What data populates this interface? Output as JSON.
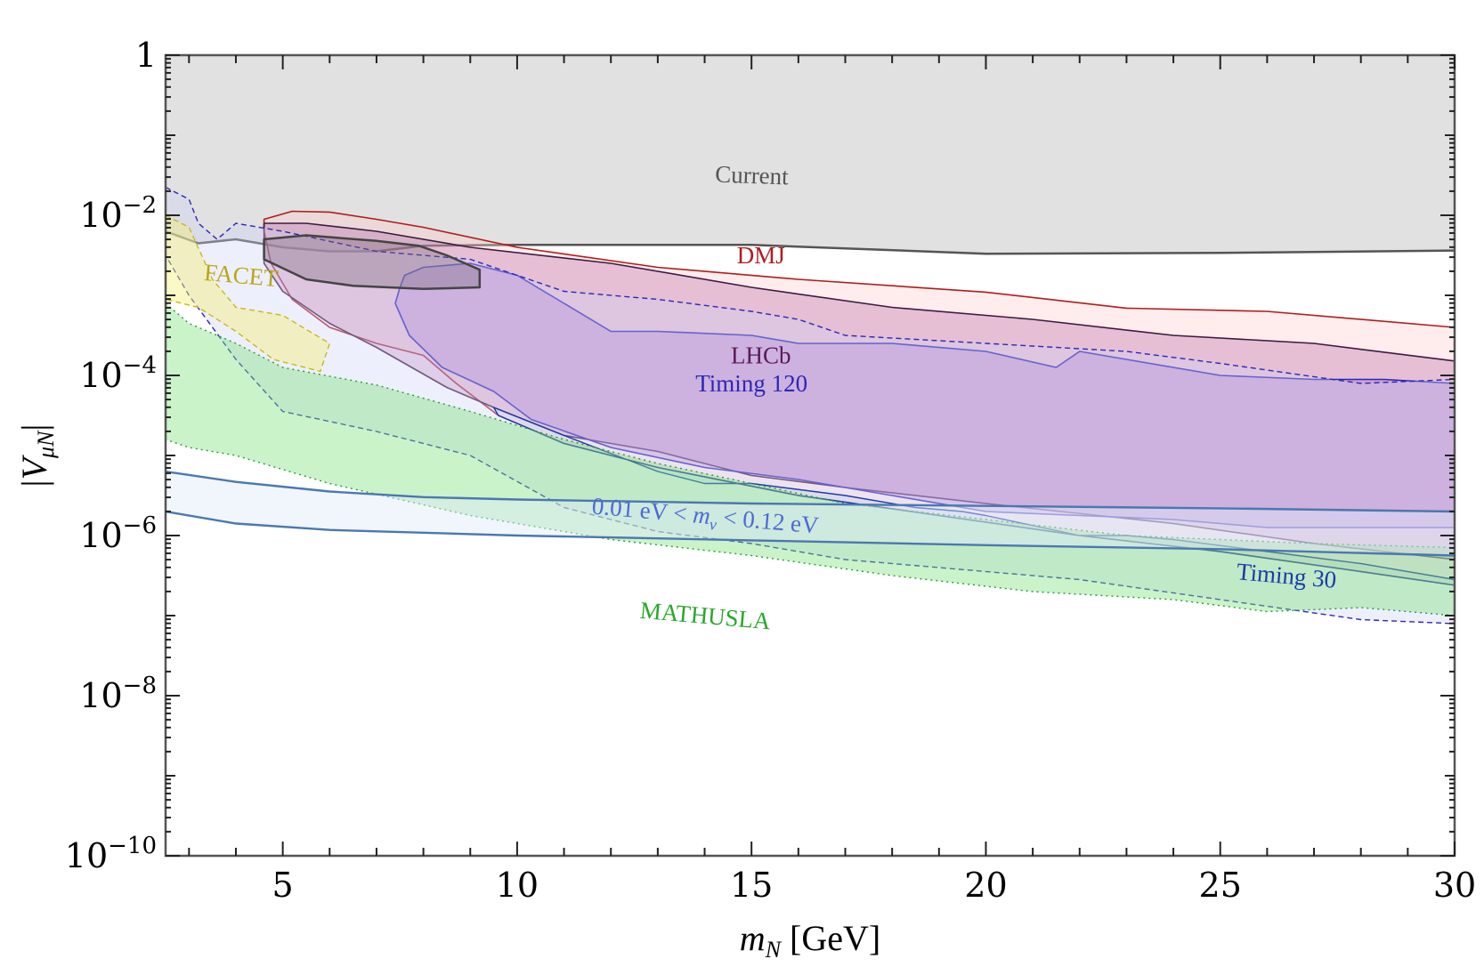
{
  "chart_data": {
    "type": "area",
    "title": "",
    "xlabel": "m_N [GeV]",
    "xlabel_parts": {
      "symbol": "m",
      "sub": "N",
      "unit": "[GeV]"
    },
    "ylabel": "|V_μN|",
    "ylabel_parts": {
      "bar": "|",
      "symbol": "V",
      "sub": "μN"
    },
    "x_scale": "linear",
    "y_scale": "log",
    "xlim": [
      2.5,
      30
    ],
    "ylim_exp": [
      -10,
      0
    ],
    "x_ticks": [
      5,
      10,
      15,
      20,
      25,
      30
    ],
    "x_tick_labels": [
      "5",
      "10",
      "15",
      "20",
      "25",
      "30"
    ],
    "y_ticks_exp": [
      -10,
      -8,
      -6,
      -4,
      -2,
      0
    ],
    "y_tick_labels": [
      {
        "exp": -10,
        "base": "10",
        "sup": "−10"
      },
      {
        "exp": -8,
        "base": "10",
        "sup": "−8"
      },
      {
        "exp": -6,
        "base": "10",
        "sup": "−6"
      },
      {
        "exp": -4,
        "base": "10",
        "sup": "−4"
      },
      {
        "exp": -2,
        "base": "10",
        "sup": "−2"
      },
      {
        "exp": 0,
        "base": "1",
        "sup": ""
      }
    ],
    "series": [
      {
        "name": "Current",
        "kind": "excluded-above",
        "fill": "#c8c8c8",
        "fill_opacity": 0.55,
        "stroke": "#555555",
        "stroke_width": 2.5,
        "dash": "",
        "lower_boundary": [
          [
            2.5,
            -2.2
          ],
          [
            3.2,
            -2.35
          ],
          [
            4,
            -2.3
          ],
          [
            5,
            -2.4
          ],
          [
            6,
            -2.45
          ],
          [
            7,
            -2.45
          ],
          [
            8,
            -2.38
          ],
          [
            10,
            -2.37
          ],
          [
            12,
            -2.37
          ],
          [
            15,
            -2.37
          ],
          [
            20,
            -2.48
          ],
          [
            25,
            -2.47
          ],
          [
            30,
            -2.44
          ]
        ]
      },
      {
        "name": "DMJ",
        "kind": "closed",
        "fill": "#ffc8c8",
        "fill_opacity": 0.35,
        "stroke": "#b01c1c",
        "stroke_width": 1.6,
        "dash": "",
        "points": [
          [
            4.6,
            -2.05
          ],
          [
            5.2,
            -1.95
          ],
          [
            6,
            -1.96
          ],
          [
            7,
            -2.05
          ],
          [
            8,
            -2.15
          ],
          [
            10,
            -2.4
          ],
          [
            13,
            -2.65
          ],
          [
            16,
            -2.8
          ],
          [
            20,
            -2.96
          ],
          [
            23,
            -3.16
          ],
          [
            26,
            -3.2
          ],
          [
            30,
            -3.4
          ],
          [
            30,
            -6.62
          ],
          [
            28,
            -6.45
          ],
          [
            25,
            -6.2
          ],
          [
            22,
            -6.0
          ],
          [
            19,
            -5.75
          ],
          [
            16,
            -5.5
          ],
          [
            13,
            -5.15
          ],
          [
            11,
            -4.85
          ],
          [
            9.6,
            -4.5
          ],
          [
            8.7,
            -4.1
          ],
          [
            8,
            -3.75
          ],
          [
            7,
            -3.6
          ],
          [
            6,
            -3.4
          ],
          [
            5.2,
            -3.05
          ],
          [
            4.75,
            -2.6
          ],
          [
            4.6,
            -2.2
          ]
        ]
      },
      {
        "name": "LHCb",
        "kind": "closed",
        "fill": "#a64d9c",
        "fill_opacity": 0.28,
        "stroke": "#3c1a40",
        "stroke_width": 1.6,
        "dash": "",
        "points": [
          [
            4.6,
            -2.1
          ],
          [
            5.5,
            -2.1
          ],
          [
            7,
            -2.2
          ],
          [
            9,
            -2.4
          ],
          [
            12,
            -2.6
          ],
          [
            15,
            -2.9
          ],
          [
            18,
            -3.15
          ],
          [
            21,
            -3.3
          ],
          [
            24,
            -3.5
          ],
          [
            27,
            -3.6
          ],
          [
            30,
            -3.82
          ],
          [
            30,
            -6.3
          ],
          [
            27,
            -6.1
          ],
          [
            24,
            -5.85
          ],
          [
            20,
            -5.6
          ],
          [
            17,
            -5.4
          ],
          [
            15,
            -5.25
          ],
          [
            13,
            -4.95
          ],
          [
            11,
            -4.75
          ],
          [
            9.5,
            -4.4
          ],
          [
            8.5,
            -4.15
          ],
          [
            7,
            -3.65
          ],
          [
            6,
            -3.35
          ],
          [
            5,
            -2.95
          ],
          [
            4.6,
            -2.6
          ]
        ]
      },
      {
        "name": "Timing 120",
        "kind": "closed",
        "fill": "#9a66d0",
        "fill_opacity": 0.35,
        "stroke": "#2a28b8",
        "stroke_width": 1.6,
        "dash": "",
        "points": [
          [
            7.6,
            -2.75
          ],
          [
            8,
            -2.65
          ],
          [
            9,
            -2.6
          ],
          [
            10,
            -2.75
          ],
          [
            11,
            -3.1
          ],
          [
            12,
            -3.45
          ],
          [
            13,
            -3.45
          ],
          [
            15,
            -3.5
          ],
          [
            16,
            -3.6
          ],
          [
            18,
            -3.6
          ],
          [
            20,
            -3.7
          ],
          [
            21.5,
            -3.9
          ],
          [
            22,
            -3.7
          ],
          [
            23,
            -3.8
          ],
          [
            25,
            -4.0
          ],
          [
            27,
            -4.05
          ],
          [
            28.5,
            -4.05
          ],
          [
            30,
            -4.1
          ],
          [
            30,
            -5.9
          ],
          [
            28,
            -5.9
          ],
          [
            26,
            -5.9
          ],
          [
            24,
            -5.8
          ],
          [
            22,
            -5.75
          ],
          [
            20,
            -5.7
          ],
          [
            18,
            -5.5
          ],
          [
            16,
            -5.3
          ],
          [
            14,
            -5.15
          ],
          [
            12,
            -4.9
          ],
          [
            10.3,
            -4.55
          ],
          [
            9.5,
            -4.2
          ],
          [
            8.4,
            -3.9
          ],
          [
            7.7,
            -3.5
          ],
          [
            7.4,
            -3.1
          ],
          [
            7.5,
            -2.9
          ]
        ]
      },
      {
        "name": "Timing 120 (dashed)",
        "kind": "closed",
        "fill": "#cfd0f5",
        "fill_opacity": 0.35,
        "stroke": "#2a28b8",
        "stroke_width": 1.4,
        "dash": "6,4",
        "points": [
          [
            2.5,
            -1.65
          ],
          [
            3,
            -1.8
          ],
          [
            3.2,
            -2.1
          ],
          [
            3.6,
            -2.3
          ],
          [
            4,
            -2.1
          ],
          [
            5,
            -2.2
          ],
          [
            7,
            -2.45
          ],
          [
            9,
            -2.55
          ],
          [
            11,
            -2.95
          ],
          [
            13,
            -3.05
          ],
          [
            15,
            -3.2
          ],
          [
            16,
            -3.3
          ],
          [
            17,
            -3.5
          ],
          [
            20,
            -3.6
          ],
          [
            23,
            -3.7
          ],
          [
            25,
            -3.85
          ],
          [
            28,
            -4.1
          ],
          [
            30,
            -4.05
          ],
          [
            30,
            -7.1
          ],
          [
            28,
            -7.05
          ],
          [
            25,
            -6.8
          ],
          [
            22,
            -6.55
          ],
          [
            19,
            -6.4
          ],
          [
            17,
            -6.3
          ],
          [
            15,
            -6.1
          ],
          [
            13,
            -5.95
          ],
          [
            11,
            -5.65
          ],
          [
            9,
            -5.0
          ],
          [
            7,
            -4.7
          ],
          [
            5,
            -4.45
          ],
          [
            4,
            -3.8
          ],
          [
            3,
            -3.0
          ],
          [
            2.5,
            -2.5
          ]
        ]
      },
      {
        "name": "Timing 30",
        "kind": "closed",
        "fill": "#5a8fd6",
        "fill_opacity": 0.1,
        "stroke": "#1a3ca8",
        "stroke_width": 1.4,
        "dash": "",
        "points": [
          [
            9.5,
            -4.4
          ],
          [
            11,
            -4.75
          ],
          [
            13,
            -5.2
          ],
          [
            14,
            -5.35
          ],
          [
            15,
            -5.35
          ],
          [
            17,
            -5.5
          ],
          [
            18.5,
            -5.65
          ],
          [
            19.5,
            -5.7
          ],
          [
            20,
            -5.75
          ],
          [
            22,
            -6.0
          ],
          [
            23,
            -6.0
          ],
          [
            24,
            -6.05
          ],
          [
            26,
            -6.2
          ],
          [
            28,
            -6.35
          ],
          [
            30,
            -6.55
          ],
          [
            30,
            -6.62
          ],
          [
            28,
            -6.45
          ],
          [
            25,
            -6.2
          ],
          [
            22,
            -6.0
          ],
          [
            19,
            -5.75
          ],
          [
            16,
            -5.5
          ],
          [
            13,
            -5.15
          ],
          [
            11,
            -4.85
          ],
          [
            9.6,
            -4.5
          ]
        ]
      },
      {
        "name": "MATHUSLA",
        "kind": "closed",
        "fill": "#7ae27a",
        "fill_opacity": 0.4,
        "stroke": "#2a9a3a",
        "stroke_width": 1.4,
        "dash": "2,4",
        "points": [
          [
            2.5,
            -3.1
          ],
          [
            3,
            -3.35
          ],
          [
            4,
            -3.6
          ],
          [
            5,
            -3.9
          ],
          [
            7,
            -4.12
          ],
          [
            9,
            -4.45
          ],
          [
            11,
            -4.8
          ],
          [
            13,
            -5.1
          ],
          [
            15,
            -5.35
          ],
          [
            17,
            -5.6
          ],
          [
            20,
            -5.8
          ],
          [
            23,
            -6.0
          ],
          [
            25,
            -6.05
          ],
          [
            27,
            -6.1
          ],
          [
            30,
            -6.15
          ],
          [
            30,
            -7.0
          ],
          [
            28,
            -6.9
          ],
          [
            26,
            -6.95
          ],
          [
            24,
            -6.8
          ],
          [
            21,
            -6.7
          ],
          [
            18,
            -6.5
          ],
          [
            15,
            -6.25
          ],
          [
            12,
            -6.05
          ],
          [
            9,
            -5.75
          ],
          [
            6,
            -5.35
          ],
          [
            4,
            -5.0
          ],
          [
            3,
            -4.9
          ],
          [
            2.5,
            -4.8
          ]
        ]
      },
      {
        "name": "FACET",
        "kind": "closed",
        "fill": "#f5f07a",
        "fill_opacity": 0.45,
        "stroke": "#c8b820",
        "stroke_width": 1.4,
        "dash": "6,4",
        "points": [
          [
            2.5,
            -2.0
          ],
          [
            3,
            -2.15
          ],
          [
            3.5,
            -2.8
          ],
          [
            4,
            -3.15
          ],
          [
            5,
            -3.25
          ],
          [
            6,
            -3.6
          ],
          [
            5.8,
            -3.95
          ],
          [
            4.8,
            -3.8
          ],
          [
            4,
            -3.45
          ],
          [
            3.2,
            -3.15
          ],
          [
            2.5,
            -3.05
          ]
        ]
      },
      {
        "name": "Current (inner)",
        "kind": "closed",
        "fill": "#7a6a7a",
        "fill_opacity": 0.35,
        "stroke": "#444444",
        "stroke_width": 2.5,
        "dash": "",
        "points": [
          [
            7.9,
            -2.38
          ],
          [
            8.5,
            -2.5
          ],
          [
            9.2,
            -2.68
          ],
          [
            9.2,
            -2.9
          ],
          [
            8,
            -2.92
          ],
          [
            6.5,
            -2.88
          ],
          [
            5.5,
            -2.8
          ],
          [
            4.6,
            -2.55
          ],
          [
            4.6,
            -2.3
          ],
          [
            5.5,
            -2.25
          ],
          [
            7,
            -2.32
          ]
        ]
      },
      {
        "name": "0.01 eV < m_ν < 0.12 eV",
        "kind": "band",
        "fill": "#dfe8f8",
        "fill_opacity": 0.45,
        "stroke": "#4a78b0",
        "stroke_width": 2.4,
        "dash": "",
        "upper": [
          [
            2.5,
            -5.2
          ],
          [
            4,
            -5.33
          ],
          [
            6,
            -5.45
          ],
          [
            8,
            -5.52
          ],
          [
            10,
            -5.55
          ],
          [
            15,
            -5.6
          ],
          [
            20,
            -5.63
          ],
          [
            25,
            -5.66
          ],
          [
            30,
            -5.7
          ]
        ],
        "lower": [
          [
            2.5,
            -5.7
          ],
          [
            4,
            -5.85
          ],
          [
            6,
            -5.93
          ],
          [
            10,
            -6.0
          ],
          [
            15,
            -6.06
          ],
          [
            20,
            -6.12
          ],
          [
            25,
            -6.17
          ],
          [
            30,
            -6.25
          ]
        ]
      }
    ],
    "annotations": [
      {
        "text": "Current",
        "x": 15,
        "y_exp": -1.6,
        "color": "#555555",
        "angle": 2
      },
      {
        "text": "DMJ",
        "x": 15.2,
        "y_exp": -2.6,
        "color": "#b01c1c",
        "angle": 0
      },
      {
        "text": "LHCb",
        "x": 15.2,
        "y_exp": -3.85,
        "color": "#5a1a5a",
        "angle": 0
      },
      {
        "text": "Timing 120",
        "x": 15,
        "y_exp": -4.2,
        "color": "#2a28b8",
        "angle": 0
      },
      {
        "text": "FACET",
        "x": 4.1,
        "y_exp": -2.85,
        "color": "#b8a818",
        "angle": 5
      },
      {
        "text": "MATHUSLA",
        "x": 14,
        "y_exp": -7.1,
        "color": "#2aa82a",
        "angle": 5
      },
      {
        "text": "Timing 30",
        "x": 26.4,
        "y_exp": -6.6,
        "color": "#1a3ca8",
        "angle": 5
      }
    ],
    "mass_annotation": {
      "pre": "0.01 eV < ",
      "symbol": "m",
      "sub": "ν",
      "post": " < 0.12 eV",
      "x": 14,
      "y_exp": -5.85,
      "color": "#4a6ad8",
      "angle": 5
    },
    "legend": "none",
    "grid": false
  }
}
